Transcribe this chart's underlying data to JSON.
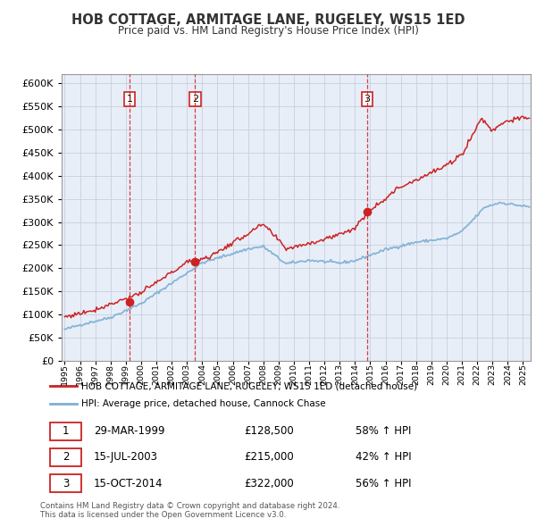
{
  "title": "HOB COTTAGE, ARMITAGE LANE, RUGELEY, WS15 1ED",
  "subtitle": "Price paid vs. HM Land Registry's House Price Index (HPI)",
  "legend_line1": "HOB COTTAGE, ARMITAGE LANE, RUGELEY, WS15 1ED (detached house)",
  "legend_line2": "HPI: Average price, detached house, Cannock Chase",
  "footer1": "Contains HM Land Registry data © Crown copyright and database right 2024.",
  "footer2": "This data is licensed under the Open Government Licence v3.0.",
  "transactions": [
    {
      "label": "1",
      "date": "29-MAR-1999",
      "price": "£128,500",
      "pct": "58% ↑ HPI",
      "year": 1999.24,
      "price_val": 128500
    },
    {
      "label": "2",
      "date": "15-JUL-2003",
      "price": "£215,000",
      "pct": "42% ↑ HPI",
      "year": 2003.54,
      "price_val": 215000
    },
    {
      "label": "3",
      "date": "15-OCT-2014",
      "price": "£322,000",
      "pct": "56% ↑ HPI",
      "year": 2014.79,
      "price_val": 322000
    }
  ],
  "hpi_color": "#7bafd4",
  "price_color": "#cc2222",
  "dashed_color": "#cc2222",
  "background_color": "#e8eef8",
  "ylim": [
    0,
    620000
  ],
  "yticks": [
    0,
    50000,
    100000,
    150000,
    200000,
    250000,
    300000,
    350000,
    400000,
    450000,
    500000,
    550000,
    600000
  ],
  "xlim_start": 1994.8,
  "xlim_end": 2025.5
}
